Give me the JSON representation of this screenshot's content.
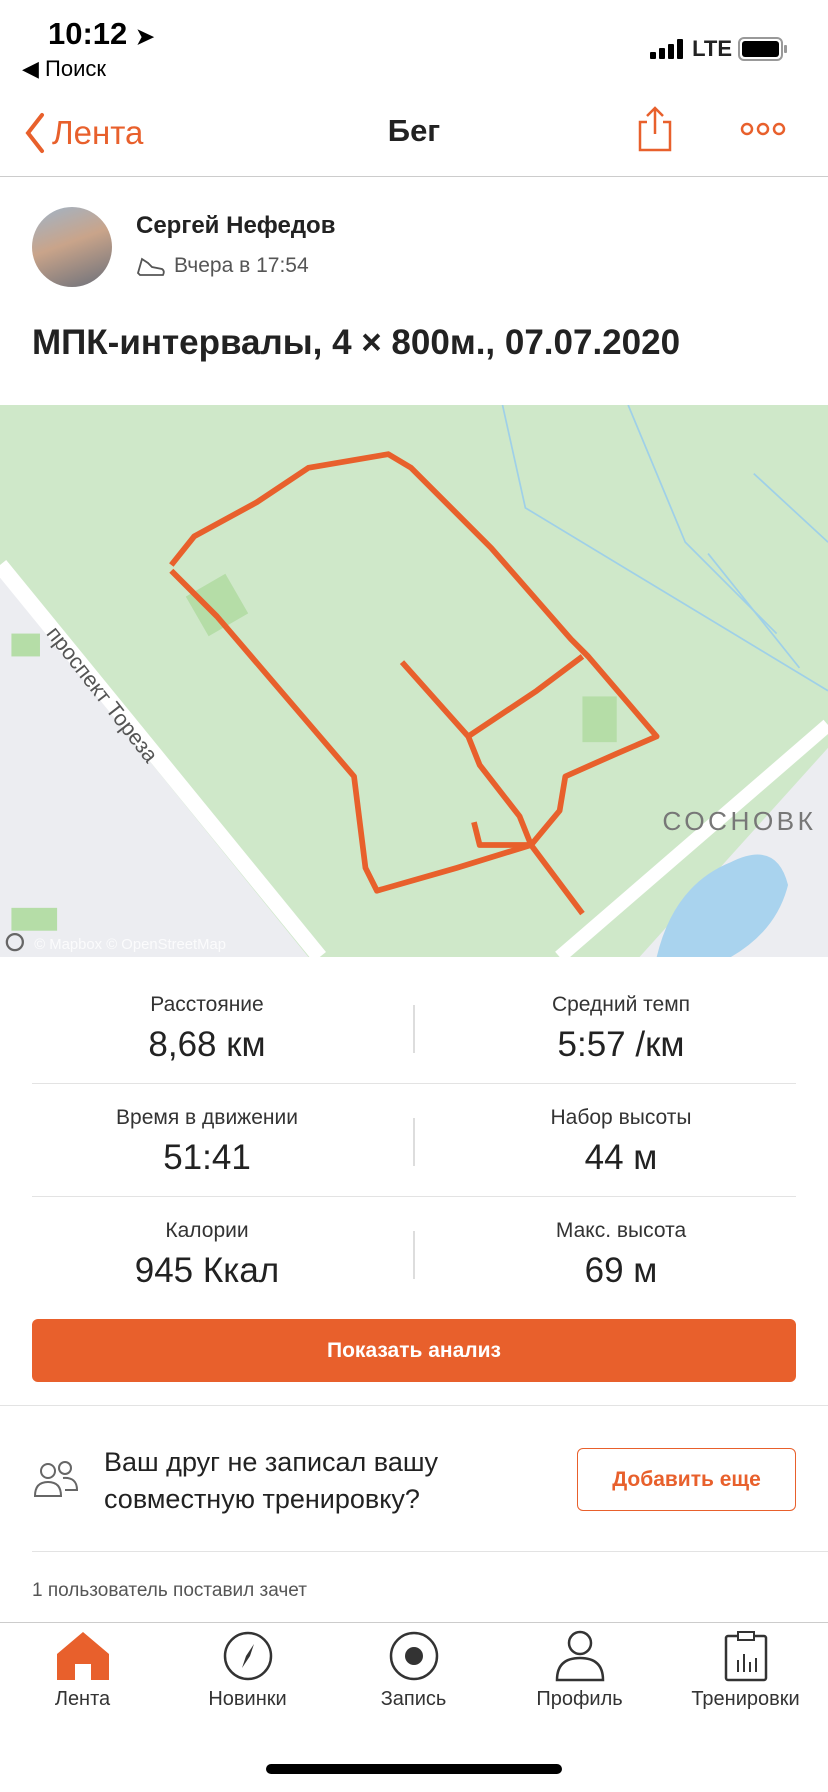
{
  "status_bar": {
    "time": "10:12",
    "back_app": "Поиск",
    "network": "LTE"
  },
  "nav": {
    "back_label": "Лента",
    "title": "Бег"
  },
  "activity": {
    "athlete": "Сергей Нефедов",
    "date": "Вчера в 17:54",
    "title": "МПК-интервалы, 4 × 800м., 07.07.2020"
  },
  "map": {
    "street_label": "проспект Тореза",
    "area_label": "СОСНОВК",
    "attribution": "© Mapbox © OpenStreetMap",
    "route_color": "#e8602c"
  },
  "stats": [
    {
      "label": "Расстояние",
      "value": "8,68 км"
    },
    {
      "label": "Средний темп",
      "value": "5:57 /км"
    },
    {
      "label": "Время в движении",
      "value": "51:41"
    },
    {
      "label": "Набор высоты",
      "value": "44 м"
    },
    {
      "label": "Калории",
      "value": "945 Ккал"
    },
    {
      "label": "Макс. высота",
      "value": "69 м"
    }
  ],
  "analysis_button": "Показать анализ",
  "friend_prompt": {
    "text_line1": "Ваш друг не записал вашу",
    "text_line2": "совместную тренировку?",
    "button": "Добавить еще"
  },
  "kudos": "1 пользователь поставил зачет",
  "tabs": [
    {
      "label": "Лента",
      "icon": "home-icon",
      "active": true
    },
    {
      "label": "Новинки",
      "icon": "compass-icon"
    },
    {
      "label": "Запись",
      "icon": "record-icon"
    },
    {
      "label": "Профиль",
      "icon": "profile-icon"
    },
    {
      "label": "Тренировки",
      "icon": "training-log-icon"
    }
  ],
  "accent_color": "#e8602c"
}
